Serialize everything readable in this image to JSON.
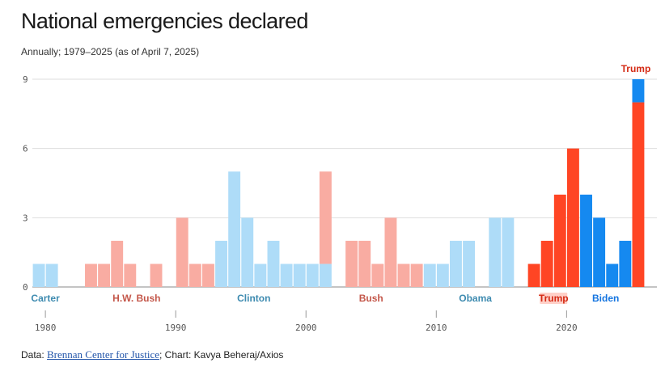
{
  "title": "National emergencies declared",
  "subtitle": "Annually; 1979–2025 (as of April 7, 2025)",
  "footer": {
    "prefix": "Data: ",
    "source_link": "Brennan Center for Justice",
    "suffix": "; Chart: Kavya Beheraj/Axios"
  },
  "colors": {
    "dem_light": "#aedcf8",
    "rep_light": "#f9aca2",
    "dem_current": "#1589f0",
    "rep_current": "#ff4524",
    "grid": "#dddddd",
    "dem_label": "#3e8bb0",
    "rep_label": "#c4574a",
    "trump_label": "#d42a14",
    "biden_label": "#1575e0"
  },
  "chart_data": {
    "type": "bar",
    "stacked": true,
    "xlim": [
      1979,
      2025
    ],
    "ylim": [
      0,
      9
    ],
    "yticks": [
      "0",
      "3",
      "6",
      "9"
    ],
    "xticks": [
      "1980",
      "1990",
      "2000",
      "2010",
      "2020"
    ],
    "grid": true,
    "x": [
      1979,
      1980,
      1981,
      1982,
      1983,
      1984,
      1985,
      1986,
      1987,
      1988,
      1989,
      1990,
      1991,
      1992,
      1993,
      1994,
      1995,
      1996,
      1997,
      1998,
      1999,
      2000,
      2001,
      2002,
      2003,
      2004,
      2005,
      2006,
      2007,
      2008,
      2009,
      2010,
      2011,
      2012,
      2013,
      2014,
      2015,
      2016,
      2017,
      2018,
      2019,
      2020,
      2021,
      2022,
      2023,
      2024,
      2025
    ],
    "series": [
      {
        "values": [
          1,
          1,
          0,
          0,
          0,
          0,
          0,
          0,
          0,
          0,
          0,
          0,
          0,
          0,
          2,
          5,
          3,
          1,
          2,
          1,
          1,
          1,
          1,
          0,
          0,
          0,
          0,
          0,
          0,
          0,
          1,
          1,
          2,
          2,
          0,
          3,
          3,
          0,
          0,
          0,
          0,
          0,
          4,
          3,
          1,
          2,
          1
        ],
        "color_key": "dem_light_or_current"
      },
      {
        "values": [
          0,
          0,
          0,
          0,
          1,
          1,
          2,
          1,
          0,
          1,
          0,
          3,
          1,
          1,
          0,
          0,
          0,
          0,
          0,
          0,
          0,
          0,
          4,
          0,
          2,
          2,
          1,
          3,
          1,
          1,
          0,
          0,
          0,
          0,
          0,
          0,
          0,
          0,
          1,
          2,
          4,
          6,
          0,
          0,
          0,
          0,
          8
        ],
        "color_key": "rep_light_or_current"
      }
    ],
    "president_labels": [
      {
        "name": "Carter",
        "year": 1979.5,
        "party": "dem"
      },
      {
        "name": "H.W. Bush",
        "year": 1986.5,
        "party": "rep"
      },
      {
        "name": "Clinton",
        "year": 1995.5,
        "party": "dem"
      },
      {
        "name": "Bush",
        "year": 2004.5,
        "party": "rep"
      },
      {
        "name": "Obama",
        "year": 2012.5,
        "party": "dem"
      },
      {
        "name": "Trump",
        "year": 2018.5,
        "party": "trump"
      },
      {
        "name": "Biden",
        "year": 2022.5,
        "party": "biden"
      }
    ],
    "annotation": {
      "text": "Trump",
      "year": 2025
    }
  }
}
